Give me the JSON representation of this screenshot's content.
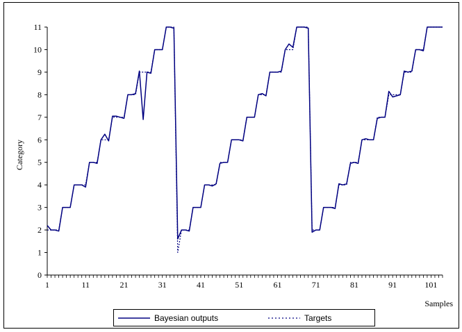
{
  "chart_data": {
    "type": "line",
    "title": "",
    "xlabel": "Samples",
    "ylabel": "Category",
    "xlim": [
      1,
      104
    ],
    "ylim": [
      0,
      11
    ],
    "x_ticks": [
      1,
      11,
      21,
      31,
      41,
      51,
      61,
      71,
      81,
      91,
      101
    ],
    "y_ticks": [
      0,
      1,
      2,
      3,
      4,
      5,
      6,
      7,
      8,
      9,
      10,
      11
    ],
    "grid": false,
    "legend_position": "bottom",
    "x": [
      1,
      2,
      3,
      4,
      5,
      6,
      7,
      8,
      9,
      10,
      11,
      12,
      13,
      14,
      15,
      16,
      17,
      18,
      19,
      20,
      21,
      22,
      23,
      24,
      25,
      26,
      27,
      28,
      29,
      30,
      31,
      32,
      33,
      34,
      35,
      36,
      37,
      38,
      39,
      40,
      41,
      42,
      43,
      44,
      45,
      46,
      47,
      48,
      49,
      50,
      51,
      52,
      53,
      54,
      55,
      56,
      57,
      58,
      59,
      60,
      61,
      62,
      63,
      64,
      65,
      66,
      67,
      68,
      69,
      70,
      71,
      72,
      73,
      74,
      75,
      76,
      77,
      78,
      79,
      80,
      81,
      82,
      83,
      84,
      85,
      86,
      87,
      88,
      89,
      90,
      91,
      92,
      93,
      94,
      95,
      96,
      97,
      98,
      99,
      100,
      101,
      102,
      103,
      104
    ],
    "series": [
      {
        "name": "Bayesian outputs",
        "color": "#000080",
        "style": "solid",
        "values": [
          2.2,
          2.0,
          2.0,
          1.95,
          3.0,
          3.0,
          3.0,
          4.0,
          4.0,
          4.0,
          3.9,
          5.0,
          5.0,
          4.95,
          6.0,
          6.25,
          5.95,
          7.05,
          7.05,
          7.0,
          6.95,
          8.0,
          8.0,
          8.05,
          9.05,
          6.9,
          9.0,
          8.95,
          10.0,
          10.0,
          10.0,
          11.0,
          11.0,
          10.95,
          1.6,
          2.0,
          2.0,
          1.95,
          3.0,
          3.0,
          3.0,
          4.0,
          4.0,
          3.95,
          4.05,
          4.95,
          5.0,
          5.0,
          6.0,
          6.0,
          6.0,
          5.95,
          7.0,
          7.0,
          7.0,
          8.0,
          8.05,
          7.95,
          9.0,
          9.0,
          9.0,
          9.05,
          10.0,
          10.25,
          10.1,
          11.0,
          11.0,
          11.0,
          10.95,
          1.9,
          2.0,
          2.0,
          3.0,
          3.0,
          3.0,
          2.95,
          4.05,
          4.0,
          4.05,
          4.95,
          5.0,
          4.95,
          6.0,
          6.05,
          6.0,
          6.0,
          6.95,
          7.0,
          7.0,
          8.15,
          7.9,
          7.95,
          8.0,
          9.05,
          9.0,
          9.05,
          10.0,
          10.0,
          9.95,
          11.0,
          11.0,
          11.0,
          11.0,
          11.0
        ]
      },
      {
        "name": "Targets",
        "color": "#000080",
        "style": "dotted",
        "values": [
          2,
          2,
          2,
          2,
          3,
          3,
          3,
          4,
          4,
          4,
          4,
          5,
          5,
          5,
          6,
          6,
          6,
          7,
          7,
          7,
          7,
          8,
          8,
          8,
          9,
          9,
          9,
          9,
          10,
          10,
          10,
          11,
          11,
          11,
          1,
          2,
          2,
          2,
          3,
          3,
          3,
          4,
          4,
          4,
          4,
          5,
          5,
          5,
          6,
          6,
          6,
          6,
          7,
          7,
          7,
          8,
          8,
          8,
          9,
          9,
          9,
          9,
          10,
          10,
          10,
          11,
          11,
          11,
          11,
          2,
          2,
          2,
          3,
          3,
          3,
          3,
          4,
          4,
          4,
          5,
          5,
          5,
          6,
          6,
          6,
          6,
          7,
          7,
          7,
          8,
          8,
          8,
          8,
          9,
          9,
          9,
          10,
          10,
          10,
          11,
          11,
          11,
          11,
          11
        ]
      }
    ]
  }
}
